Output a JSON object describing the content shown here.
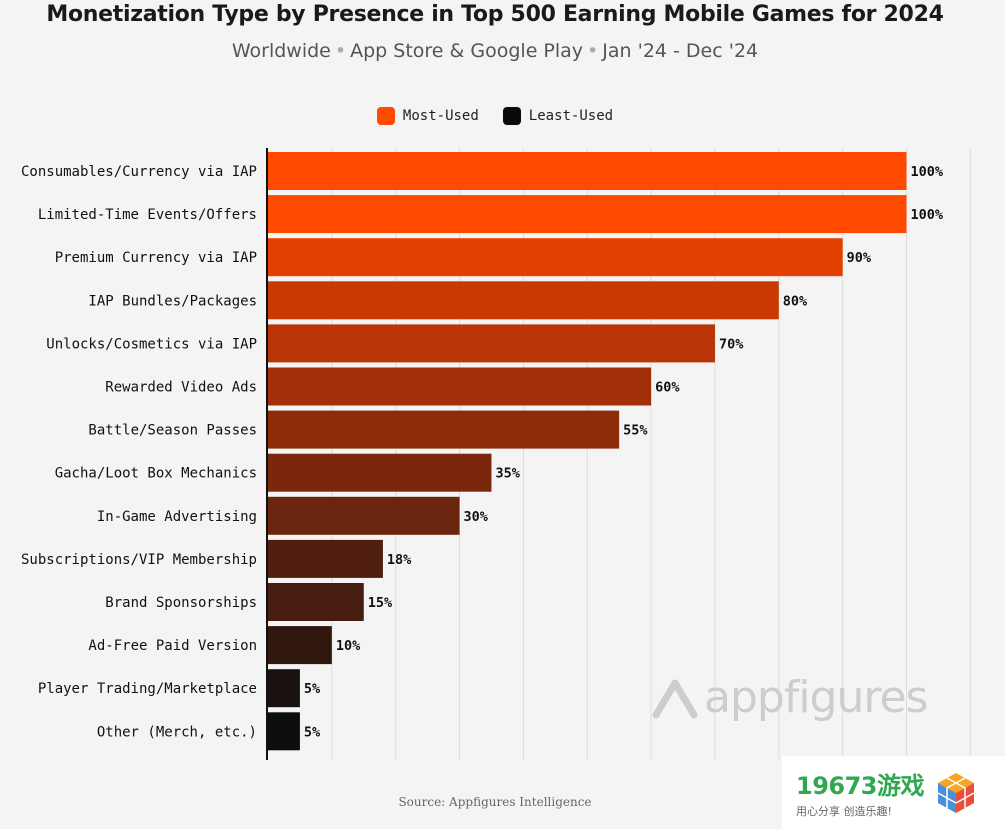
{
  "header": {
    "title": "Monetization Type by Presence in Top 500 Earning Mobile Games for 2024",
    "subtitle_parts": [
      "Worldwide",
      "App Store & Google Play",
      "Jan '24 - Dec '24"
    ]
  },
  "legend": [
    {
      "label": "Most-Used",
      "color": "#ff4a00"
    },
    {
      "label": "Least-Used",
      "color": "#0a0a0a"
    }
  ],
  "chart_data": {
    "type": "bar",
    "orientation": "horizontal",
    "categories": [
      "Consumables/Currency via IAP",
      "Limited-Time Events/Offers",
      "Premium Currency via IAP",
      "IAP Bundles/Packages",
      "Unlocks/Cosmetics via IAP",
      "Rewarded Video Ads",
      "Battle/Season Passes",
      "Gacha/Loot Box Mechanics",
      "In-Game Advertising",
      "Subscriptions/VIP Membership",
      "Brand Sponsorships",
      "Ad-Free Paid Version",
      "Player Trading/Marketplace",
      "Other (Merch, etc.)"
    ],
    "values": [
      100,
      100,
      90,
      80,
      70,
      60,
      55,
      35,
      30,
      18,
      15,
      10,
      5,
      5
    ],
    "value_labels": [
      "100%",
      "100%",
      "90%",
      "80%",
      "70%",
      "60%",
      "55%",
      "35%",
      "30%",
      "18%",
      "15%",
      "10%",
      "5%",
      "5%"
    ],
    "xlim": [
      0,
      110
    ],
    "grid": "vertical gridlines every 10",
    "colors": [
      "#ff4a00",
      "#ff4a00",
      "#e24000",
      "#c93a03",
      "#b93506",
      "#a32f08",
      "#8e2b09",
      "#7a270c",
      "#6b240e",
      "#4f1e0f",
      "#461d10",
      "#30180f",
      "#1a1211",
      "#0e0e10"
    ]
  },
  "footer": {
    "source": "Source: Appfigures Intelligence",
    "watermark": "appfigures",
    "badge_main": "19673游戏",
    "badge_sub": "用心分享  创造乐趣!"
  }
}
